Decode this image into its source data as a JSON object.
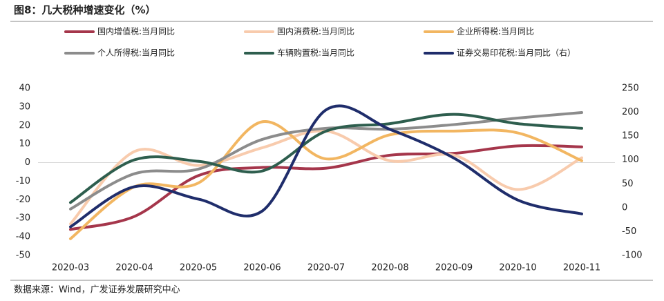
{
  "chart_data": {
    "type": "line",
    "title": "图8：几大税种增速变化（%）",
    "source": "数据来源：Wind，广发证券发展研究中心",
    "categories": [
      "2020-03",
      "2020-04",
      "2020-05",
      "2020-06",
      "2020-07",
      "2020-08",
      "2020-09",
      "2020-10",
      "2020-11"
    ],
    "ylim": [
      -50,
      40
    ],
    "yticks": [
      -50,
      -40,
      -30,
      -20,
      -10,
      0,
      10,
      20,
      30,
      40
    ],
    "y2lim": [
      -100,
      250
    ],
    "y2ticks": [
      -100,
      -50,
      0,
      50,
      100,
      150,
      200,
      250
    ],
    "smooth": true,
    "legend": "top",
    "series": [
      {
        "name": "国内增值税:当月同比",
        "color": "#A5364B",
        "values": [
          -36,
          -29,
          -7,
          -2.6,
          -3,
          4,
          5,
          9,
          8.5
        ]
      },
      {
        "name": "国内消费税:当月同比",
        "color": "#F8CBAD",
        "values": [
          -33,
          6,
          -1.5,
          8,
          17,
          1,
          4,
          -14.5,
          2.6
        ]
      },
      {
        "name": "企业所得税:当月同比",
        "color": "#F2B661",
        "values": [
          -41,
          -13,
          -11,
          22,
          2,
          15,
          17,
          16,
          1
        ]
      },
      {
        "name": "个人所得税:当月同比",
        "color": "#8C8C8C",
        "values": [
          -25,
          -6,
          -3.5,
          12.5,
          18.5,
          18,
          20.5,
          24,
          27
        ]
      },
      {
        "name": "车辆购置税:当月同比",
        "color": "#2E5E4E",
        "values": [
          -21.5,
          1.5,
          0.7,
          -4.5,
          17,
          21,
          26,
          21,
          18.5
        ]
      },
      {
        "name": "证券交易印花税:当月同比（右）",
        "color": "#1F2D6B",
        "axis": "y2",
        "values": [
          -40,
          44,
          18,
          -7,
          205,
          164,
          104,
          16,
          -13
        ]
      }
    ]
  }
}
